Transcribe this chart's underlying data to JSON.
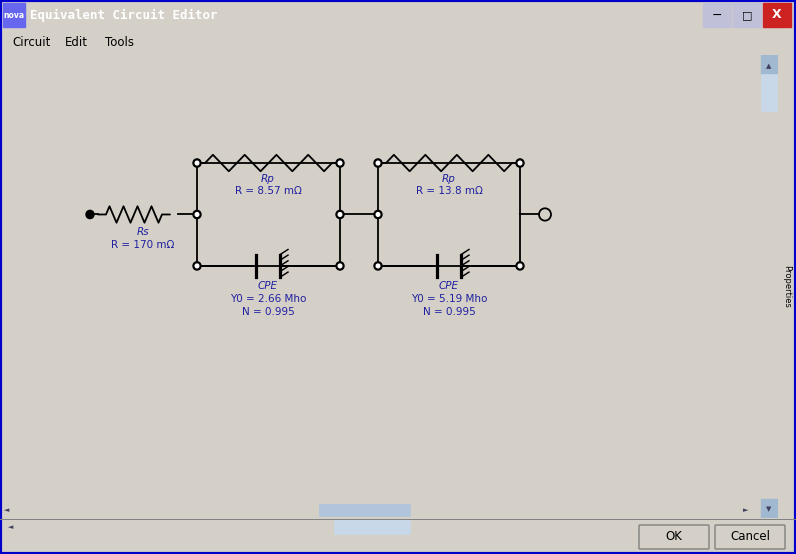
{
  "title": "Equivalent Circuit Editor",
  "menu_items": [
    "Circuit",
    "Edit",
    "Tools"
  ],
  "title_bar_color": "#0060FF",
  "title_bar_text_color": "#FFFFFF",
  "window_bg": "#D4D0C8",
  "window_border_color": "#0000AA",
  "canvas_bg": "#FFFFFF",
  "scrollbar_bg": "#C8D8E8",
  "scrollbar_track": "#B0C4D8",
  "circuit_line_color": "#000000",
  "label_color": "#2020A0",
  "rs_label": "Rs",
  "rs_value": "R = 170 mΩ",
  "rp1_label": "Rp",
  "rp1_value": "R = 8.57 mΩ",
  "cpe1_label": "CPE",
  "cpe1_y0": "Y0 = 2.66 Mho",
  "cpe1_n": "N = 0.995",
  "rp2_label": "Rp",
  "rp2_value": "R = 13.8 mΩ",
  "cpe2_label": "CPE",
  "cpe2_y0": "Y0 = 5.19 Mho",
  "cpe2_n": "N = 0.995",
  "fig_width": 7.96,
  "fig_height": 5.54,
  "dpi": 100
}
